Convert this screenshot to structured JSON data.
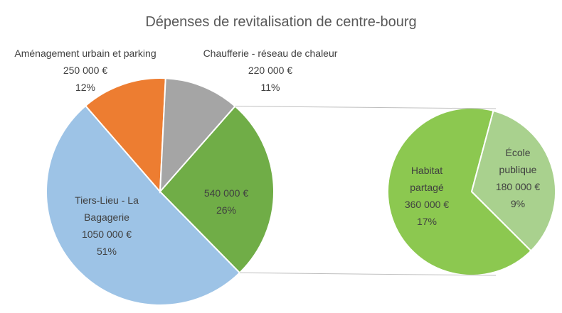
{
  "chart_data": {
    "type": "pie-of-pie",
    "title": "Dépenses de revitalisation de centre-bourg",
    "categories": [
      "Tiers-Lieu - La Bagagerie",
      "Aménagement urbain et parking",
      "Chaufferie - réseau de chaleur",
      null
    ],
    "values": [
      1050000,
      250000,
      220000,
      540000
    ],
    "value_labels": [
      "1050 000 €",
      "250 000 €",
      "220 000 €",
      "540 000 €"
    ],
    "percents": [
      51,
      12,
      11,
      26
    ],
    "percent_labels": [
      "51%",
      "12%",
      "11%",
      "26%"
    ],
    "colors": [
      "#9dc3e6",
      "#ed7d31",
      "#a5a5a5",
      "#70ad47"
    ],
    "secondary": {
      "categories": [
        "Habitat partagé",
        "École publique"
      ],
      "values": [
        360000,
        180000
      ],
      "value_labels": [
        "360 000 €",
        "180 000 €"
      ],
      "percents": [
        17,
        9
      ],
      "percent_labels": [
        "17%",
        "9%"
      ],
      "colors": [
        "#8cc850",
        "#a9d18e"
      ]
    }
  }
}
